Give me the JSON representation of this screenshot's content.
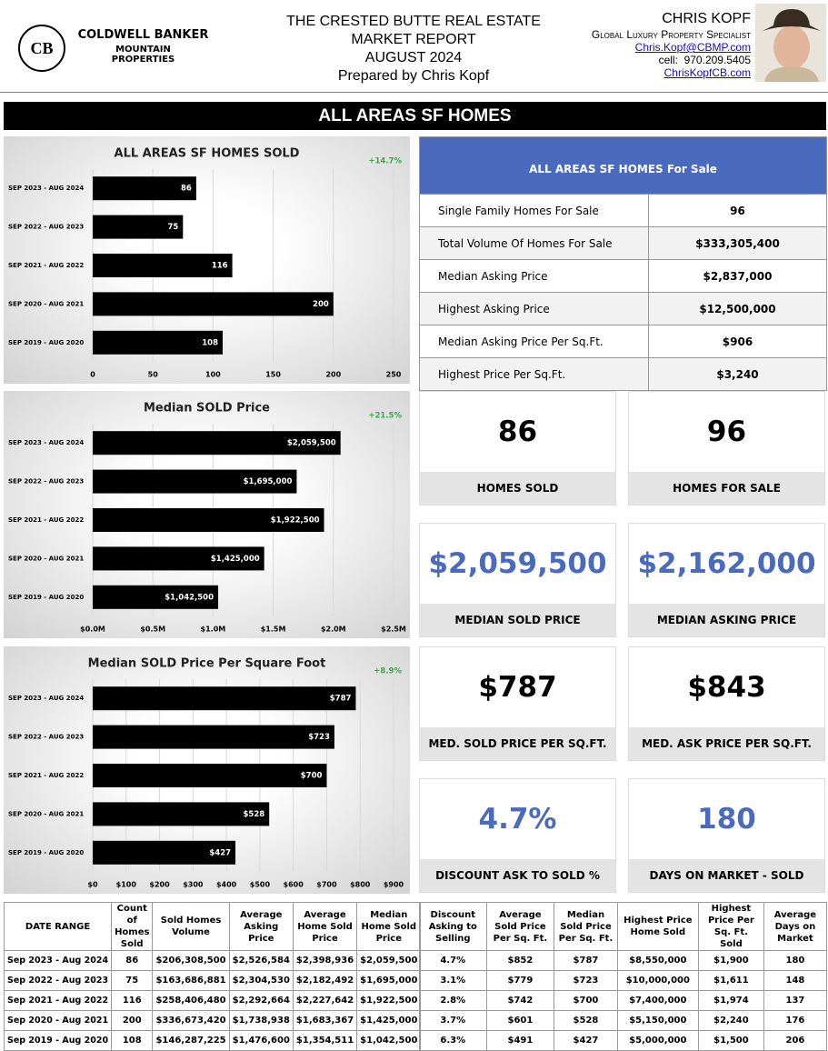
{
  "header": {
    "logo_mark": "CB",
    "brand": "COLDWELL BANKER",
    "brand_sub": [
      "MOUNTAIN",
      "PROPERTIES"
    ],
    "title_lines": [
      "THE CRESTED BUTTE REAL ESTATE",
      "MARKET REPORT",
      "AUGUST 2024",
      "Prepared by Chris Kopf"
    ],
    "agent": {
      "name": "CHRIS KOPF",
      "role": "Global Luxury Property Specialist",
      "email": "Chris.Kopf@CBMP.com",
      "cell": "cell:  970.209.5405",
      "website": "ChrisKopfCB.com"
    }
  },
  "section_title": "ALL AREAS SF HOMES",
  "chart_data": [
    {
      "type": "bar",
      "orientation": "horizontal",
      "title": "ALL AREAS SF HOMES SOLD",
      "annotation": "+14.7%",
      "annotation_color": "#3aa94a",
      "color": "#000000",
      "grid": true,
      "categories": [
        "SEP 2023 - AUG 2024",
        "SEP 2022 - AUG 2023",
        "SEP 2021 - AUG 2022",
        "SEP 2020 - AUG 2021",
        "SEP 2019 - AUG 2020"
      ],
      "values": [
        86,
        75,
        116,
        200,
        108
      ],
      "xlim": [
        0,
        250
      ],
      "xticks": [
        0,
        50,
        100,
        150,
        200,
        250
      ]
    },
    {
      "type": "bar",
      "orientation": "horizontal",
      "title": "Median SOLD Price",
      "annotation": "+21.5%",
      "annotation_color": "#3aa94a",
      "color": "#000000",
      "grid": true,
      "categories": [
        "SEP 2023 - AUG 2024",
        "SEP 2022 - AUG 2023",
        "SEP 2021 - AUG 2022",
        "SEP 2020 - AUG 2021",
        "SEP 2019 - AUG 2020"
      ],
      "values": [
        2059500,
        1695000,
        1922500,
        1425000,
        1042500
      ],
      "value_labels": [
        "$2,059,500",
        "$1,695,000",
        "$1,922,500",
        "$1,425,000",
        "$1,042,500"
      ],
      "xlim": [
        0,
        2500000
      ],
      "xticks": [
        {
          "value": 0,
          "label": "$0.0M"
        },
        {
          "value": 500000,
          "label": "$0.5M"
        },
        {
          "value": 1000000,
          "label": "$1.0M"
        },
        {
          "value": 1500000,
          "label": "$1.5M"
        },
        {
          "value": 2000000,
          "label": "$2.0M"
        },
        {
          "value": 2500000,
          "label": "$2.5M"
        }
      ]
    },
    {
      "type": "bar",
      "orientation": "horizontal",
      "title": "Median SOLD Price Per Square Foot",
      "annotation": "+8.9%",
      "annotation_color": "#3aa94a",
      "color": "#000000",
      "grid": true,
      "categories": [
        "SEP 2023 - AUG 2024",
        "SEP 2022 - AUG 2023",
        "SEP 2021 - AUG 2022",
        "SEP 2020 - AUG 2021",
        "SEP 2019 - AUG 2020"
      ],
      "values": [
        787,
        723,
        700,
        528,
        427
      ],
      "value_labels": [
        "$787",
        "$723",
        "$700",
        "$528",
        "$427"
      ],
      "xlim": [
        0,
        900
      ],
      "xticks": [
        {
          "value": 0,
          "label": "$0"
        },
        {
          "value": 100,
          "label": "$100"
        },
        {
          "value": 200,
          "label": "$200"
        },
        {
          "value": 300,
          "label": "$300"
        },
        {
          "value": 400,
          "label": "$400"
        },
        {
          "value": 500,
          "label": "$500"
        },
        {
          "value": 600,
          "label": "$600"
        },
        {
          "value": 700,
          "label": "$700"
        },
        {
          "value": 800,
          "label": "$800"
        },
        {
          "value": 900,
          "label": "$900"
        }
      ]
    }
  ],
  "for_sale": {
    "title": "ALL AREAS SF HOMES For Sale",
    "rows": [
      [
        "Single Family Homes For Sale",
        "96"
      ],
      [
        "Total Volume Of Homes For Sale",
        "$333,305,400"
      ],
      [
        "Median Asking Price",
        "$2,837,000"
      ],
      [
        "Highest Asking Price",
        "$12,500,000"
      ],
      [
        "Median Asking Price Per Sq.Ft.",
        "$906"
      ],
      [
        "Highest Price Per Sq.Ft.",
        "$3,240"
      ]
    ]
  },
  "stats": [
    {
      "value": "86",
      "label": "HOMES SOLD",
      "color": "#000000"
    },
    {
      "value": "96",
      "label": "HOMES FOR SALE",
      "color": "#000000"
    },
    {
      "value": "$2,059,500",
      "label": "MEDIAN SOLD PRICE",
      "color": "#4a6bbd"
    },
    {
      "value": "$2,162,000",
      "label": "MEDIAN ASKING PRICE",
      "color": "#4a6bbd"
    },
    {
      "value": "$787",
      "label": "MED. SOLD PRICE PER SQ.FT.",
      "color": "#000000"
    },
    {
      "value": "$843",
      "label": "MED. ASK PRICE PER SQ.FT.",
      "color": "#000000"
    },
    {
      "value": "4.7%",
      "label": "DISCOUNT ASK TO SOLD %",
      "color": "#4a6bbd"
    },
    {
      "value": "180",
      "label": "DAYS ON MARKET - SOLD",
      "color": "#4a6bbd"
    }
  ],
  "tables": [
    {
      "headers": [
        "DATE RANGE",
        "Count of Homes Sold",
        "Sold Homes Volume",
        "Average Asking Price",
        "Average Home Sold Price",
        "Median Home Sold Price"
      ],
      "rows": [
        [
          "Sep 2023 - Aug 2024",
          "86",
          "$206,308,500",
          "$2,526,584",
          "$2,398,936",
          "$2,059,500"
        ],
        [
          "Sep 2022 - Aug 2023",
          "75",
          "$163,686,881",
          "$2,304,530",
          "$2,182,492",
          "$1,695,000"
        ],
        [
          "Sep 2021 - Aug 2022",
          "116",
          "$258,406,480",
          "$2,292,664",
          "$2,227,642",
          "$1,922,500"
        ],
        [
          "Sep 2020 - Aug 2021",
          "200",
          "$336,673,420",
          "$1,738,938",
          "$1,683,367",
          "$1,425,000"
        ],
        [
          "Sep 2019 - Aug 2020",
          "108",
          "$146,287,225",
          "$1,476,600",
          "$1,354,511",
          "$1,042,500"
        ]
      ]
    },
    {
      "headers": [
        "Discount Asking to Selling",
        "Average Sold Price Per Sq. Ft.",
        "Median Sold Price Per Sq. Ft.",
        "Highest Price Home Sold",
        "Highest Price Per Sq. Ft. Sold",
        "Average Days on Market"
      ],
      "rows": [
        [
          "4.7%",
          "$852",
          "$787",
          "$8,550,000",
          "$1,900",
          "180"
        ],
        [
          "3.1%",
          "$779",
          "$723",
          "$10,000,000",
          "$1,611",
          "148"
        ],
        [
          "2.8%",
          "$742",
          "$700",
          "$7,400,000",
          "$1,974",
          "137"
        ],
        [
          "3.7%",
          "$601",
          "$528",
          "$5,150,000",
          "$2,240",
          "176"
        ],
        [
          "6.3%",
          "$491",
          "$427",
          "$5,000,000",
          "$1,500",
          "206"
        ]
      ]
    }
  ]
}
